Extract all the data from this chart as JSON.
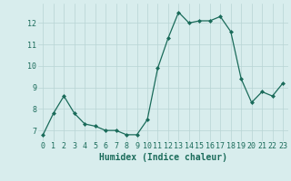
{
  "x": [
    0,
    1,
    2,
    3,
    4,
    5,
    6,
    7,
    8,
    9,
    10,
    11,
    12,
    13,
    14,
    15,
    16,
    17,
    18,
    19,
    20,
    21,
    22,
    23
  ],
  "y": [
    6.8,
    7.8,
    8.6,
    7.8,
    7.3,
    7.2,
    7.0,
    7.0,
    6.8,
    6.8,
    7.5,
    9.9,
    11.3,
    12.5,
    12.0,
    12.1,
    12.1,
    12.3,
    11.6,
    9.4,
    8.3,
    8.8,
    8.6,
    9.2
  ],
  "line_color": "#1a6b5a",
  "marker": "D",
  "marker_size": 2.0,
  "linewidth": 0.9,
  "xlabel": "Humidex (Indice chaleur)",
  "bg_color": "#d8eded",
  "grid_color": "#b8d4d4",
  "xlim": [
    -0.5,
    23.5
  ],
  "ylim": [
    6.5,
    12.9
  ],
  "xticks": [
    0,
    1,
    2,
    3,
    4,
    5,
    6,
    7,
    8,
    9,
    10,
    11,
    12,
    13,
    14,
    15,
    16,
    17,
    18,
    19,
    20,
    21,
    22,
    23
  ],
  "yticks": [
    7,
    8,
    9,
    10,
    11,
    12
  ],
  "tick_fontsize": 6,
  "xlabel_fontsize": 7,
  "tick_color": "#1a6b5a",
  "label_color": "#1a6b5a"
}
